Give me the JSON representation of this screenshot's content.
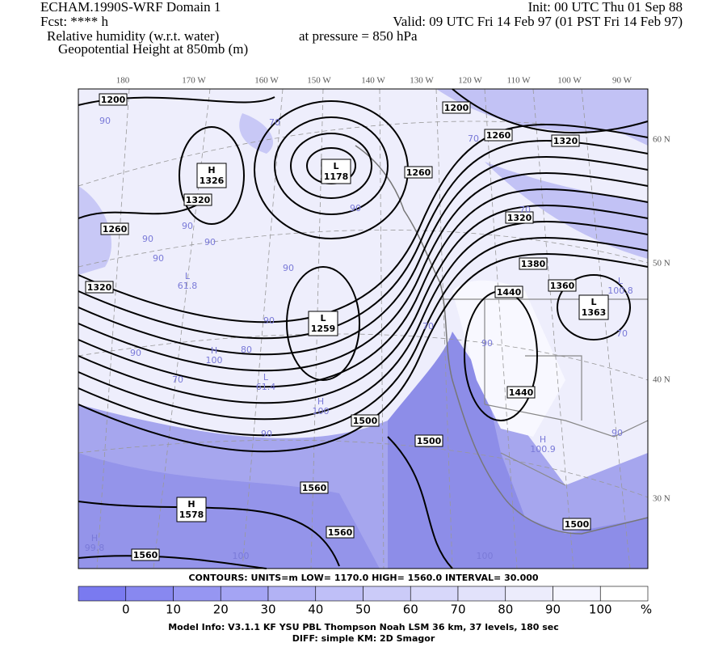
{
  "header": {
    "left": [
      "ECHAM.1990S-WRF Domain 1",
      "Fcst: **** h",
      "Relative humidity (w.r.t. water)",
      "Geopotential Height at 850mb (m)"
    ],
    "right": [
      "Init: 00 UTC Thu 01 Sep 88",
      "Valid: 09 UTC Fri 14 Feb 97 (01 PST Fri 14 Feb 97)",
      "at pressure =  850 hPa"
    ]
  },
  "map": {
    "lon_labels": [
      "180",
      "170 W",
      "160 W",
      "150 W",
      "140 W",
      "130 W",
      "120 W",
      "110 W",
      "100 W",
      "90 W"
    ],
    "lat_labels": [
      "60 N",
      "50 N",
      "40 N",
      "30 N"
    ],
    "contour_labels": [
      1200,
      1200,
      1260,
      1320,
      1260,
      1320,
      1260,
      1320,
      1380,
      1360,
      1440,
      1320,
      1440,
      1500,
      1500,
      1560,
      1560,
      1500,
      1560
    ],
    "extrema": [
      {
        "letter": "H",
        "value": 1326
      },
      {
        "letter": "L",
        "value": 1178
      },
      {
        "letter": "L",
        "value": 1259
      },
      {
        "letter": "L",
        "value": 1363
      },
      {
        "letter": "H",
        "value": 1578
      }
    ],
    "rh_labels": [
      90,
      70,
      70,
      90,
      90,
      90,
      90,
      90,
      90,
      90,
      90,
      70,
      70,
      90,
      80,
      90,
      90,
      70,
      70,
      100,
      100
    ],
    "rh_extrema": [
      {
        "letter": "L",
        "value": 61.8
      },
      {
        "letter": "H",
        "value": 100
      },
      {
        "letter": "L",
        "value": 61.4
      },
      {
        "letter": "H",
        "value": 100
      },
      {
        "letter": "H",
        "value": 100.9
      },
      {
        "letter": "H",
        "value": 99.8
      },
      {
        "letter": "L",
        "value": 100.8
      }
    ]
  },
  "footer": {
    "contours": "CONTOURS:  UNITS=m  LOW=   1170.0    HIGH=  1560.0    INTERVAL=    30.000",
    "colorbar": {
      "labels": [
        0,
        10,
        20,
        30,
        40,
        50,
        60,
        70,
        80,
        90,
        100
      ],
      "unit": "%",
      "colors": [
        "#7a7af0",
        "#8888f0",
        "#9696f2",
        "#a4a4f4",
        "#b2b2f5",
        "#bfbff7",
        "#cbcbf8",
        "#d7d7fa",
        "#e2e2fb",
        "#ececfc",
        "#f5f5fe",
        "#ffffff"
      ]
    },
    "model_info": "Model Info: V3.1.1    KF       YSU PBL   Thompson     Noah LSM   36 km,    37 levels,   180 sec",
    "diff": "DIFF: simple KM: 2D Smagor"
  }
}
